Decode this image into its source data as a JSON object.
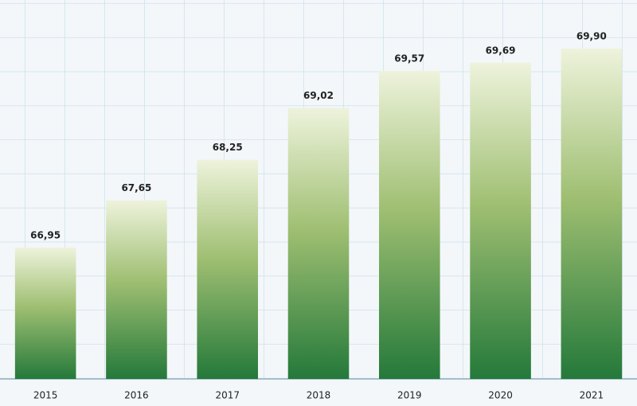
{
  "chart_data": {
    "type": "bar",
    "categories": [
      "2015",
      "2016",
      "2017",
      "2018",
      "2019",
      "2020",
      "2021"
    ],
    "values": [
      66.95,
      67.65,
      68.25,
      69.02,
      69.57,
      69.69,
      69.9
    ],
    "value_labels": [
      "66,95",
      "67,65",
      "68,25",
      "69,02",
      "69,57",
      "69,69",
      "69,90"
    ],
    "color": "#24793a",
    "ylim": [
      65,
      70.62
    ]
  }
}
